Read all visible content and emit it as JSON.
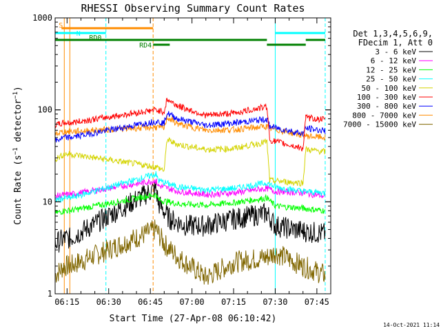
{
  "chart_data": {
    "type": "line",
    "title": "RHESSI Observing Summary Count Rates",
    "xlabel": "Start Time (27-Apr-08 06:10:42)",
    "ylabel": "Count Rate (s⁻¹ detector⁻¹)",
    "ylabel_main": "Count Rate (s",
    "ylabel_sup1": "−1",
    "ylabel_mid": " detector",
    "ylabel_sup2": "−1",
    "ylabel_close": ")",
    "y_scale": "log",
    "ylim": [
      1,
      1000
    ],
    "xlim": [
      "06:10:42",
      "07:50:00"
    ],
    "x_ticks": [
      "06:15",
      "06:30",
      "06:45",
      "07:00",
      "07:15",
      "07:30",
      "07:45"
    ],
    "y_ticks": [
      {
        "value": 1,
        "label": "1"
      },
      {
        "value": 10,
        "label": "10"
      },
      {
        "value": 100,
        "label": "100"
      },
      {
        "value": 1000,
        "label": "1000"
      }
    ],
    "legend": {
      "placement": "right",
      "header": [
        "Det 1,3,4,5,6,9,",
        "FDecim 1, Att 0"
      ],
      "entries": [
        {
          "label": "3 - 6 keV",
          "color": "#000000"
        },
        {
          "label": "6 - 12 keV",
          "color": "#ff00ff"
        },
        {
          "label": "12 - 25 keV",
          "color": "#00ff00"
        },
        {
          "label": "25 - 50 keV",
          "color": "#00ffff"
        },
        {
          "label": "50 - 100 keV",
          "color": "#d4d400"
        },
        {
          "label": "100 - 300 keV",
          "color": "#ff0000"
        },
        {
          "label": "300 - 800 keV",
          "color": "#0000ff"
        },
        {
          "label": "800 - 7000 keV",
          "color": "#ff8c00"
        },
        {
          "label": "7000 - 15000 keV",
          "color": "#806600"
        }
      ]
    },
    "series": [
      {
        "name": "3 - 6 keV",
        "color": "#000000",
        "points": [
          [
            "06:10:42",
            3.5
          ],
          [
            "06:14:00",
            4
          ],
          [
            "06:16:00",
            4
          ],
          [
            "06:47:00",
            14
          ],
          [
            "06:48:00",
            9.5
          ],
          [
            "06:52:00",
            6.5
          ],
          [
            "06:58:00",
            5.5
          ],
          [
            "07:05:00",
            5.5
          ],
          [
            "07:15:00",
            6.5
          ],
          [
            "07:27:00",
            7.5
          ],
          [
            "07:30:00",
            5.5
          ],
          [
            "07:40:00",
            4.8
          ],
          [
            "07:48:00",
            4.5
          ]
        ]
      },
      {
        "name": "6 - 12 keV",
        "color": "#ff00ff",
        "points": [
          [
            "06:10:42",
            11.5
          ],
          [
            "06:14:00",
            12
          ],
          [
            "06:16:00",
            12
          ],
          [
            "06:47:00",
            17
          ],
          [
            "06:48:00",
            15
          ],
          [
            "06:55:00",
            13
          ],
          [
            "07:05:00",
            12
          ],
          [
            "07:15:00",
            12.5
          ],
          [
            "07:27:00",
            14
          ],
          [
            "07:30:00",
            13
          ],
          [
            "07:40:00",
            12.5
          ],
          [
            "07:48:00",
            11.5
          ]
        ]
      },
      {
        "name": "12 - 25 keV",
        "color": "#00ff00",
        "points": [
          [
            "06:10:42",
            7.5
          ],
          [
            "06:14:00",
            8
          ],
          [
            "06:16:00",
            8
          ],
          [
            "06:47:00",
            12
          ],
          [
            "06:48:00",
            10.5
          ],
          [
            "06:55:00",
            9.5
          ],
          [
            "07:05:00",
            9.2
          ],
          [
            "07:15:00",
            9.8
          ],
          [
            "07:27:00",
            11
          ],
          [
            "07:30:00",
            9
          ],
          [
            "07:40:00",
            8.5
          ],
          [
            "07:48:00",
            8
          ]
        ]
      },
      {
        "name": "25 - 50 keV",
        "color": "#00ffff",
        "points": [
          [
            "06:10:42",
            10.5
          ],
          [
            "06:14:00",
            11
          ],
          [
            "06:16:00",
            11
          ],
          [
            "06:47:00",
            20
          ],
          [
            "06:48:00",
            17
          ],
          [
            "06:55:00",
            14.5
          ],
          [
            "07:05:00",
            13.5
          ],
          [
            "07:15:00",
            14
          ],
          [
            "07:27:00",
            16
          ],
          [
            "07:30:00",
            14.5
          ],
          [
            "07:40:00",
            13
          ],
          [
            "07:48:00",
            12.5
          ]
        ]
      },
      {
        "name": "50 - 100 keV",
        "color": "#d4d400",
        "points": [
          [
            "06:10:42",
            29
          ],
          [
            "06:14:00",
            33
          ],
          [
            "06:16:00",
            33
          ],
          [
            "06:47:00",
            24
          ],
          [
            "06:50:00",
            22
          ],
          [
            "06:51:00",
            47
          ],
          [
            "06:55:00",
            42
          ],
          [
            "07:05:00",
            37
          ],
          [
            "07:15:00",
            38
          ],
          [
            "07:27:00",
            45
          ],
          [
            "07:28:00",
            17
          ],
          [
            "07:40:00",
            16
          ],
          [
            "07:41:00",
            37
          ],
          [
            "07:48:00",
            35
          ]
        ]
      },
      {
        "name": "100 - 300 keV",
        "color": "#ff0000",
        "points": [
          [
            "06:10:42",
            68
          ],
          [
            "06:14:00",
            72
          ],
          [
            "06:16:00",
            72
          ],
          [
            "06:47:00",
            100
          ],
          [
            "06:50:00",
            95
          ],
          [
            "06:51:00",
            130
          ],
          [
            "06:55:00",
            110
          ],
          [
            "07:05:00",
            87
          ],
          [
            "07:15:00",
            92
          ],
          [
            "07:27:00",
            108
          ],
          [
            "07:28:00",
            47
          ],
          [
            "07:40:00",
            38
          ],
          [
            "07:41:00",
            82
          ],
          [
            "07:48:00",
            78
          ]
        ]
      },
      {
        "name": "300 - 800 keV",
        "color": "#0000ff",
        "points": [
          [
            "06:10:42",
            46
          ],
          [
            "06:14:00",
            50
          ],
          [
            "06:16:00",
            50
          ],
          [
            "06:47:00",
            75
          ],
          [
            "06:50:00",
            72
          ],
          [
            "06:51:00",
            92
          ],
          [
            "06:55:00",
            80
          ],
          [
            "07:05:00",
            68
          ],
          [
            "07:15:00",
            72
          ],
          [
            "07:27:00",
            79
          ],
          [
            "07:28:00",
            66
          ],
          [
            "07:40:00",
            55
          ],
          [
            "07:41:00",
            63
          ],
          [
            "07:48:00",
            59
          ]
        ]
      },
      {
        "name": "800 - 7000 keV",
        "color": "#ff8c00",
        "points": [
          [
            "06:10:42",
            55
          ],
          [
            "06:14:00",
            58
          ],
          [
            "06:16:00",
            58
          ],
          [
            "06:47:00",
            65
          ],
          [
            "06:50:00",
            63
          ],
          [
            "06:51:00",
            83
          ],
          [
            "06:55:00",
            70
          ],
          [
            "07:05:00",
            60
          ],
          [
            "07:15:00",
            61
          ],
          [
            "07:27:00",
            66
          ],
          [
            "07:28:00",
            63
          ],
          [
            "07:40:00",
            53
          ],
          [
            "07:41:00",
            52
          ],
          [
            "07:48:00",
            50
          ]
        ]
      },
      {
        "name": "7000 - 15000 keV",
        "color": "#806600",
        "points": [
          [
            "06:10:42",
            1.6
          ],
          [
            "06:14:00",
            2
          ],
          [
            "06:16:00",
            2
          ],
          [
            "06:47:00",
            5
          ],
          [
            "06:50:00",
            3.5
          ],
          [
            "06:55:00",
            2.5
          ],
          [
            "07:05:00",
            1.5
          ],
          [
            "07:15:00",
            2.2
          ],
          [
            "07:27:00",
            2.5
          ],
          [
            "07:30:00",
            2.8
          ],
          [
            "07:40:00",
            2
          ],
          [
            "07:48:00",
            1.6
          ]
        ]
      }
    ],
    "state_bars": [
      {
        "label": "S",
        "color": "#ff8c00",
        "start": "06:13:00",
        "end": "06:46:00",
        "level": 1,
        "label_side": "start"
      },
      {
        "label": "N",
        "color": "#00ffff",
        "start": "06:10:42",
        "end": "06:29:00",
        "level": 2,
        "label_side": "end"
      },
      {
        "label": "",
        "color": "#00ffff",
        "start": "07:30:00",
        "end": "07:48:00",
        "level": 2
      },
      {
        "label": "RD0",
        "color": "#008000",
        "start": "06:10:42",
        "end": "07:27:00",
        "level": 3,
        "label_side": "above-mid"
      },
      {
        "label": "RD4",
        "color": "#008000",
        "start": "06:46:00",
        "end": "06:52:00",
        "level": 4,
        "label_side": "left"
      },
      {
        "label": "",
        "color": "#008000",
        "start": "07:27:00",
        "end": "07:41:00",
        "level": 4
      },
      {
        "label": "",
        "color": "#008000",
        "start": "07:41:00",
        "end": "07:48:00",
        "level": 3
      }
    ],
    "vertical_markers": [
      {
        "time": "06:10:42",
        "color": "#00ffff",
        "style": "solid"
      },
      {
        "time": "06:14:00",
        "color": "#ff8c00",
        "style": "solid"
      },
      {
        "time": "06:16:00",
        "color": "#ff8c00",
        "style": "solid"
      },
      {
        "time": "06:29:00",
        "color": "#00ffff",
        "style": "dashed"
      },
      {
        "time": "06:46:00",
        "color": "#ff8c00",
        "style": "dashed"
      },
      {
        "time": "07:30:00",
        "color": "#00ffff",
        "style": "solid"
      },
      {
        "time": "07:48:00",
        "color": "#00ffff",
        "style": "dashed"
      }
    ]
  },
  "footer_timestamp": "14-Oct-2021 11:14"
}
